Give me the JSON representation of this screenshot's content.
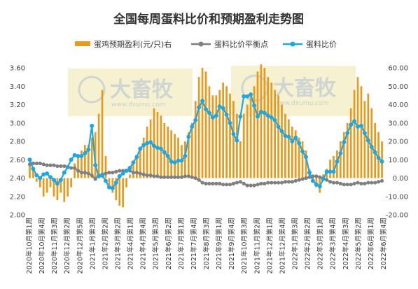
{
  "chart_data": {
    "type": "bar+line",
    "title": "全国每周蛋料比价和预期盈利走势图",
    "legend": [
      {
        "name": "蛋鸡预期盈利(元/只)右",
        "kind": "bar",
        "color": "#e89a1c"
      },
      {
        "name": "蛋料比价平衡点",
        "kind": "line",
        "color": "#7f7f7f"
      },
      {
        "name": "蛋料比价",
        "kind": "line",
        "color": "#1fa7e0"
      }
    ],
    "left_axis": {
      "min": 2.0,
      "max": 3.6,
      "ticks": [
        "2.00",
        "2.20",
        "2.40",
        "2.60",
        "2.80",
        "3.00",
        "3.20",
        "3.40",
        "3.60"
      ]
    },
    "right_axis": {
      "min": -20,
      "max": 60,
      "ticks": [
        "-20.00",
        "-10.00",
        "0.00",
        "10.00",
        "20.00",
        "30.00",
        "40.00",
        "50.00",
        "60.00"
      ]
    },
    "x_tick_labels": [
      "2020年10月第1周",
      "2020年10月第4周",
      "2020年11月第3周",
      "2020年12月第2周",
      "2020年12月第5周",
      "2021年1月第3周",
      "2021年2月第2周",
      "2021年3月第2周",
      "2021年4月第1周",
      "2021年4月第4周",
      "2021年5月第3周",
      "2021年6月第2周",
      "2021年7月第1周",
      "2021年7月第4周",
      "2021年8月第3周",
      "2021年9月第1周",
      "2021年9月第4周",
      "2021年10月第3周",
      "2021年11月第2周",
      "2021年12月第1周",
      "2021年12月第4周",
      "2022年1月第3周",
      "2022年2月第2周",
      "2022年3月第1周",
      "2022年3月第4周",
      "2022年4月第3周",
      "2022年5月第2周",
      "2022年6月第1周",
      "2022年6月第4周"
    ],
    "series": [
      {
        "name": "蛋鸡预期盈利(元/只)右",
        "axis": "right",
        "values": [
          10,
          5,
          -2,
          -5,
          -10,
          -8,
          -5,
          -10,
          -12,
          -8,
          -13,
          -10,
          -5,
          8,
          12,
          15,
          18,
          18,
          22,
          25,
          35,
          48,
          12,
          -5,
          -8,
          -12,
          -15,
          -16,
          -5,
          2,
          8,
          12,
          15,
          22,
          28,
          32,
          38,
          36,
          34,
          30,
          28,
          26,
          24,
          22,
          18,
          20,
          25,
          30,
          42,
          55,
          60,
          58,
          50,
          45,
          45,
          48,
          52,
          50,
          46,
          42,
          35,
          20,
          35,
          40,
          45,
          50,
          58,
          62,
          60,
          55,
          52,
          48,
          45,
          40,
          35,
          32,
          28,
          26,
          22,
          20,
          15,
          5,
          -2,
          -5,
          -8,
          2,
          5,
          10,
          12,
          15,
          20,
          25,
          30,
          38,
          48,
          55,
          50,
          42,
          46,
          38,
          30,
          25,
          20
        ]
      },
      {
        "name": "蛋料比价平衡点",
        "axis": "left",
        "values": [
          2.55,
          2.56,
          2.56,
          2.56,
          2.55,
          2.54,
          2.54,
          2.54,
          2.53,
          2.53,
          2.53,
          2.52,
          2.51,
          2.51,
          2.48,
          2.46,
          2.46,
          2.45,
          2.43,
          2.39,
          2.43,
          2.44,
          2.45,
          2.46,
          2.46,
          2.47,
          2.48,
          2.48,
          2.48,
          2.48,
          2.46,
          2.46,
          2.45,
          2.44,
          2.43,
          2.43,
          2.42,
          2.42,
          2.41,
          2.41,
          2.41,
          2.41,
          2.41,
          2.41,
          2.41,
          2.42,
          2.42,
          2.41,
          2.4,
          2.38,
          2.35,
          2.34,
          2.34,
          2.34,
          2.34,
          2.34,
          2.33,
          2.33,
          2.33,
          2.34,
          2.35,
          2.36,
          2.34,
          2.32,
          2.32,
          2.32,
          2.33,
          2.34,
          2.34,
          2.35,
          2.35,
          2.35,
          2.35,
          2.35,
          2.36,
          2.36,
          2.36,
          2.37,
          2.38,
          2.39,
          2.4,
          2.41,
          2.42,
          2.42,
          2.41,
          2.4,
          2.38,
          2.36,
          2.35,
          2.35,
          2.34,
          2.33,
          2.33,
          2.33,
          2.34,
          2.35,
          2.34,
          2.34,
          2.35,
          2.35,
          2.35,
          2.36,
          2.37
        ]
      },
      {
        "name": "蛋料比价",
        "axis": "left",
        "values": [
          2.6,
          2.5,
          2.43,
          2.4,
          2.44,
          2.45,
          2.41,
          2.38,
          2.34,
          2.38,
          2.46,
          2.52,
          2.6,
          2.65,
          2.64,
          2.64,
          2.67,
          2.71,
          2.97,
          2.54,
          2.42,
          2.43,
          2.37,
          2.3,
          2.29,
          2.35,
          2.42,
          2.45,
          2.48,
          2.51,
          2.57,
          2.63,
          2.72,
          2.76,
          2.78,
          2.79,
          2.75,
          2.73,
          2.72,
          2.68,
          2.64,
          2.58,
          2.57,
          2.59,
          2.59,
          2.64,
          2.85,
          2.96,
          3.03,
          3.17,
          3.24,
          3.15,
          3.11,
          3.06,
          3.08,
          3.18,
          3.16,
          3.09,
          3.0,
          2.88,
          2.81,
          3.07,
          3.29,
          3.29,
          3.31,
          3.19,
          3.07,
          3.12,
          3.11,
          3.08,
          3.06,
          3.03,
          2.96,
          2.91,
          2.86,
          2.85,
          2.8,
          2.84,
          2.78,
          2.69,
          2.63,
          2.46,
          2.37,
          2.33,
          2.31,
          2.39,
          2.47,
          2.47,
          2.47,
          2.58,
          2.67,
          2.79,
          2.89,
          2.98,
          3.02,
          2.96,
          2.97,
          2.89,
          2.81,
          2.74,
          2.68,
          2.62,
          2.58
        ]
      }
    ],
    "watermark": {
      "text": "大畜牧",
      "url": "www.dxumu.com"
    }
  }
}
